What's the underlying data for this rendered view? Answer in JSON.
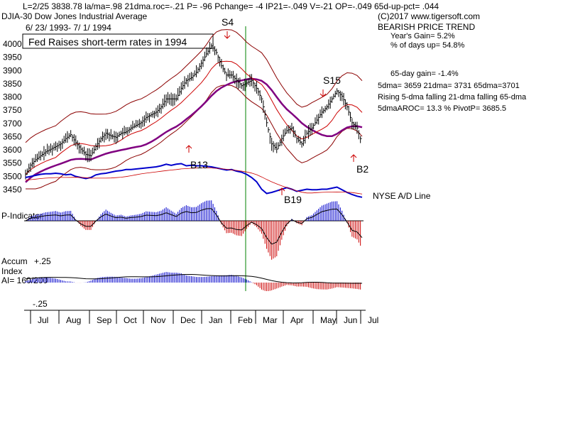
{
  "chart_data": {
    "type": "line",
    "header_line": "L=2/25   3838.78   la/ma=.98  21dma.roc=-.21  P=  -96  Pchange= -4  IP21=-.049  V=-21  OP=-.049  65d-up-pct= .044",
    "index_name": "DJIA-30  Dow Jones Industrial Average",
    "date_range": "6/ 23/ 1993-  7/ 1/ 1994",
    "annotation_box": "Fed Raises short-term rates in 1994",
    "copyright": "(C)2017  www.tigersoft.com",
    "trend_label": "BEARISH PRICE TREND",
    "stats": [
      "Year's Gain= 5.2%",
      "% of days up= 54.8%",
      "65-day gain= -1.4%",
      "5dma= 3659  21dma= 3731  65dma=3701",
      "Rising 5-dma falling 21-dma falling 65-dma",
      "5dmaAROC= 13.3 %   PivotP= 3685.5"
    ],
    "y_ticks": [
      4000,
      3950,
      3900,
      3850,
      3800,
      3750,
      3700,
      3650,
      3600,
      3550,
      3500,
      3450
    ],
    "months": [
      "Jul",
      "Aug",
      "Sep",
      "Oct",
      "Nov",
      "Dec",
      "Jan",
      "Feb",
      "Mar",
      "Apr",
      "May",
      "Jun",
      "Jul"
    ],
    "signals": [
      {
        "label": "S4",
        "x": "Jan",
        "type": "sell"
      },
      {
        "label": "S15",
        "x": "May",
        "type": "sell"
      },
      {
        "label": "B13",
        "x": "Dec",
        "type": "buy"
      },
      {
        "label": "B19",
        "x": "Apr",
        "type": "buy"
      },
      {
        "label": "B2",
        "x": "Jun",
        "type": "buy"
      }
    ],
    "panel_labels": {
      "ad_line": "NYSE A/D Line",
      "p_indicator": "P-Indicator",
      "accum_1": "Accum",
      "accum_plus": "+.25",
      "accum_2": "Index",
      "ai": "AI= 160/200",
      "accum_minus": "-.25"
    },
    "series": [
      {
        "name": "DJIA closes (approx.)",
        "values": [
          3505,
          3540,
          3560,
          3575,
          3590,
          3600,
          3610,
          3620,
          3640,
          3655,
          3625,
          3600,
          3580,
          3575,
          3610,
          3640,
          3660,
          3650,
          3645,
          3660,
          3665,
          3680,
          3690,
          3700,
          3720,
          3730,
          3740,
          3760,
          3790,
          3790,
          3790,
          3830,
          3860,
          3870,
          3890,
          3925,
          3960,
          3990,
          3965,
          3915,
          3880,
          3880,
          3860,
          3840,
          3850,
          3860,
          3830,
          3790,
          3700,
          3620,
          3600,
          3640,
          3670,
          3680,
          3640,
          3620,
          3660,
          3680,
          3710,
          3740,
          3760,
          3790,
          3820,
          3800,
          3760,
          3700,
          3680,
          3620
        ]
      },
      {
        "name": "NYSE A/D Line (relative)",
        "values": [
          0.4,
          0.42,
          0.44,
          0.46,
          0.47,
          0.47,
          0.48,
          0.47,
          0.45,
          0.46,
          0.42,
          0.4,
          0.38,
          0.4,
          0.45,
          0.47,
          0.48,
          0.5,
          0.52,
          0.53,
          0.55,
          0.55,
          0.56,
          0.57,
          0.58,
          0.59,
          0.6,
          0.62,
          0.65,
          0.63,
          0.65,
          0.66,
          0.62,
          0.63,
          0.62,
          0.62,
          0.61,
          0.6,
          0.58,
          0.56,
          0.54,
          0.55,
          0.52,
          0.5,
          0.46,
          0.4,
          0.32,
          0.18,
          0.1,
          0.12,
          0.15,
          0.18,
          0.21,
          0.18,
          0.14,
          0.16,
          0.18,
          0.17,
          0.17,
          0.18,
          0.18,
          0.2,
          0.22,
          0.17,
          0.12,
          0.08,
          0.05,
          0.03
        ]
      }
    ]
  }
}
